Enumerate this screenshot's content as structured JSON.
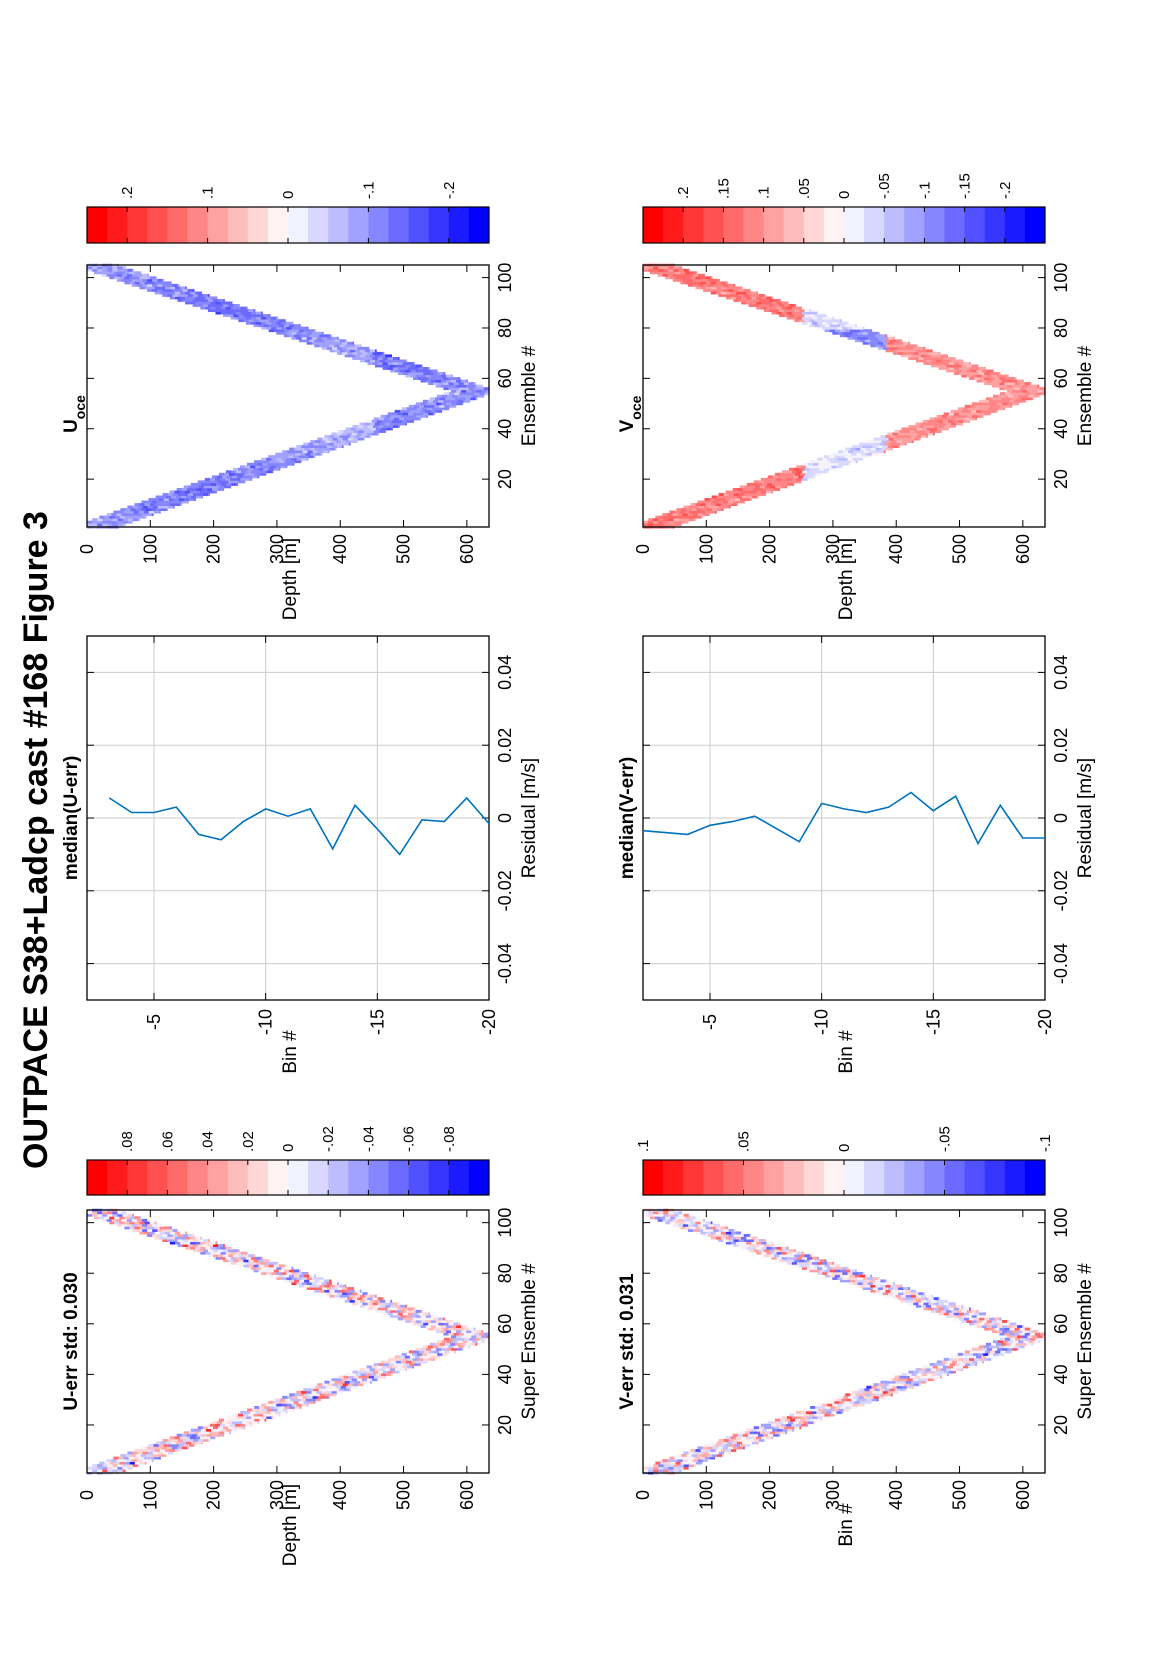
{
  "figure": {
    "title": "OUTPACE S38+Ladcp cast #168  Figure 3",
    "colors": {
      "red": "#ff0000",
      "blue": "#0000ff",
      "line": "#0072bd",
      "grid": "#cccccc"
    }
  },
  "chart_data": [
    {
      "id": "u_err",
      "type": "heatmap",
      "title": "U-err std: 0.030",
      "xlabel": "Super Ensemble #",
      "ylabel": "Depth [m]",
      "xticks": [
        20,
        40,
        60,
        80,
        100
      ],
      "yticks": [
        0,
        100,
        200,
        300,
        400,
        500,
        600
      ],
      "xlim": [
        1,
        105
      ],
      "ylim": [
        0,
        635
      ],
      "profile": {
        "x": [
          1,
          55,
          105
        ],
        "depth": [
          30,
          630,
          30
        ],
        "halfwidth": 55
      },
      "colorbar": {
        "levels": 20,
        "ticks": [
          0.08,
          0.06,
          0.04,
          0.02,
          0,
          -0.02,
          -0.04,
          -0.06,
          -0.08
        ],
        "range": [
          -0.1,
          0.1
        ]
      },
      "field": {
        "seed": 11,
        "mode": "noise",
        "amp": 0.1
      }
    },
    {
      "id": "median_u",
      "type": "line",
      "title": "median(U-err)",
      "xlabel": "Residual [m/s]",
      "ylabel": "Bin #",
      "xlim": [
        -0.05,
        0.05
      ],
      "ylim": [
        -20,
        -2
      ],
      "xticks": [
        -0.04,
        -0.02,
        0,
        0.02,
        0.04
      ],
      "yticks": [
        -5,
        -10,
        -15,
        -20
      ],
      "grid": true,
      "series": [
        {
          "bin": [
            -3,
            -4,
            -5,
            -6,
            -7,
            -8,
            -9,
            -10,
            -11,
            -12,
            -13,
            -14,
            -15,
            -16,
            -17,
            -18,
            -19,
            -20
          ],
          "residual": [
            0.0055,
            0.0015,
            0.0015,
            0.003,
            -0.0045,
            -0.006,
            -0.001,
            0.0025,
            0.0005,
            0.0025,
            -0.0085,
            0.0035,
            -0.003,
            -0.01,
            -0.0005,
            -0.001,
            0.0055,
            -0.0015
          ]
        }
      ]
    },
    {
      "id": "u_oce",
      "type": "heatmap",
      "title": "U",
      "title_sub": "oce",
      "xlabel": "Ensemble #",
      "ylabel": "Depth [m]",
      "xticks": [
        20,
        40,
        60,
        80,
        100
      ],
      "yticks": [
        0,
        100,
        200,
        300,
        400,
        500,
        600
      ],
      "xlim": [
        1,
        105
      ],
      "ylim": [
        0,
        635
      ],
      "profile": {
        "x": [
          1,
          55,
          105
        ],
        "depth": [
          30,
          630,
          30
        ],
        "halfwidth": 55
      },
      "colorbar": {
        "levels": 20,
        "ticks": [
          0.2,
          0.1,
          0,
          -0.1,
          -0.2
        ],
        "range": [
          -0.25,
          0.25
        ]
      },
      "field": {
        "seed": 23,
        "mode": "u",
        "amp": 0.25
      }
    },
    {
      "id": "v_err",
      "type": "heatmap",
      "title": "V-err std: 0.031",
      "xlabel": "Super Ensemble #",
      "ylabel": "Bin #",
      "xticks": [
        20,
        40,
        60,
        80,
        100
      ],
      "yticks": [
        0,
        100,
        200,
        300,
        400,
        500,
        600
      ],
      "xlim": [
        1,
        105
      ],
      "ylim": [
        0,
        635
      ],
      "profile": {
        "x": [
          1,
          55,
          105
        ],
        "depth": [
          30,
          630,
          30
        ],
        "halfwidth": 55
      },
      "colorbar": {
        "levels": 20,
        "ticks": [
          0.1,
          0.05,
          0,
          -0.05,
          -0.1
        ],
        "range": [
          -0.1,
          0.1
        ]
      },
      "field": {
        "seed": 37,
        "mode": "noise",
        "amp": 0.1
      }
    },
    {
      "id": "median_v",
      "type": "line",
      "title": "median(V-err)",
      "xlabel": "Residual [m/s]",
      "ylabel": "Bin #",
      "xlim": [
        -0.05,
        0.05
      ],
      "ylim": [
        -20,
        -2
      ],
      "xticks": [
        -0.04,
        -0.02,
        0,
        0.02,
        0.04
      ],
      "yticks": [
        -5,
        -10,
        -15,
        -20
      ],
      "grid": true,
      "series": [
        {
          "bin": [
            -2,
            -3,
            -4,
            -5,
            -6,
            -7,
            -8,
            -9,
            -10,
            -11,
            -12,
            -13,
            -14,
            -15,
            -16,
            -17,
            -18,
            -19,
            -20
          ],
          "residual": [
            -0.0035,
            -0.004,
            -0.0045,
            -0.002,
            -0.001,
            0.0005,
            -0.003,
            -0.0065,
            0.004,
            0.0025,
            0.0015,
            0.003,
            0.007,
            0.002,
            0.006,
            -0.007,
            0.0035,
            -0.0055,
            -0.0055
          ]
        }
      ]
    },
    {
      "id": "v_oce",
      "type": "heatmap",
      "title": "V",
      "title_sub": "oce",
      "xlabel": "Ensemble #",
      "ylabel": "Depth [m]",
      "xticks": [
        20,
        40,
        60,
        80,
        100
      ],
      "yticks": [
        0,
        100,
        200,
        300,
        400,
        500,
        600
      ],
      "xlim": [
        1,
        105
      ],
      "ylim": [
        0,
        635
      ],
      "profile": {
        "x": [
          1,
          55,
          105
        ],
        "depth": [
          30,
          630,
          30
        ],
        "halfwidth": 55
      },
      "colorbar": {
        "levels": 20,
        "ticks": [
          0.2,
          0.15,
          0.1,
          0.05,
          0,
          -0.05,
          -0.1,
          -0.15,
          -0.2
        ],
        "range": [
          -0.25,
          0.25
        ]
      },
      "field": {
        "seed": 51,
        "mode": "v",
        "amp": 0.25
      }
    }
  ]
}
